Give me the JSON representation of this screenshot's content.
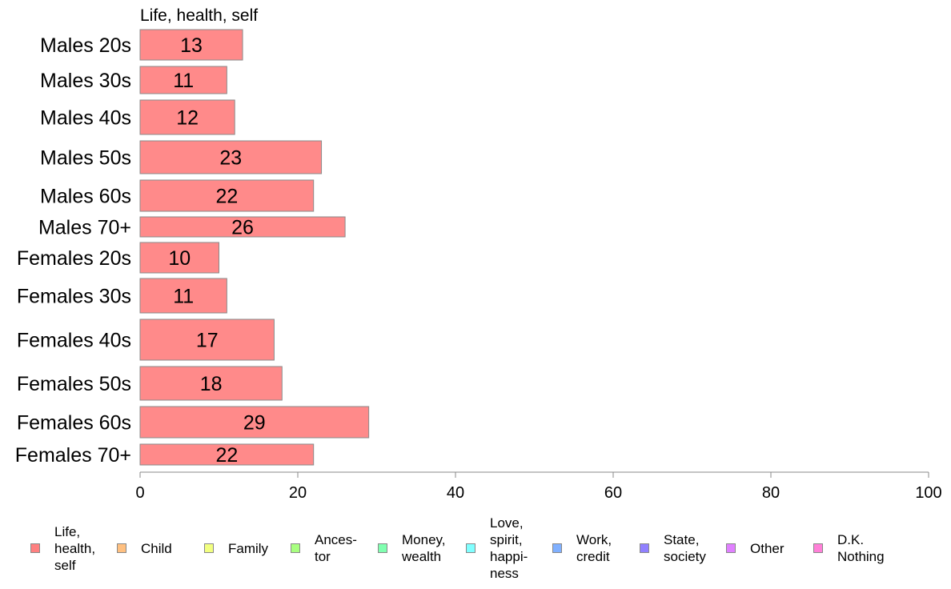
{
  "chart_data": {
    "type": "bar",
    "orientation": "horizontal",
    "series_title": "Life, health, self",
    "categories": [
      "Males 20s",
      "Males 30s",
      "Males 40s",
      "Males 50s",
      "Males 60s",
      "Males 70+",
      "Females 20s",
      "Females 30s",
      "Females 40s",
      "Females 50s",
      "Females 60s",
      "Females 70+"
    ],
    "series": [
      {
        "name": "Life, health, self",
        "values": [
          13,
          11,
          12,
          23,
          22,
          26,
          10,
          11,
          17,
          18,
          29,
          22
        ],
        "color": "#ff8a8a"
      }
    ],
    "xlim": [
      0,
      100
    ],
    "xticks": [
      0,
      20,
      40,
      60,
      80,
      100
    ],
    "grid": false,
    "legend": {
      "placement": "bottom",
      "items": [
        {
          "label": "Life,\nhealth,\nself",
          "color": "#ff8080"
        },
        {
          "label": "Child",
          "color": "#ffc080"
        },
        {
          "label": "Family",
          "color": "#f2ff80"
        },
        {
          "label": "Ances-\ntor",
          "color": "#a8ff80"
        },
        {
          "label": "Money,\nwealth",
          "color": "#80ffb0"
        },
        {
          "label": "Love,\nspirit,\nhappi-\nness",
          "color": "#80ffff"
        },
        {
          "label": "Work,\ncredit",
          "color": "#80b0ff"
        },
        {
          "label": "State,\nsociety",
          "color": "#9080ff"
        },
        {
          "label": "Other",
          "color": "#e080ff"
        },
        {
          "label": "D.K.\nNothing",
          "color": "#ff80d8"
        }
      ]
    }
  }
}
